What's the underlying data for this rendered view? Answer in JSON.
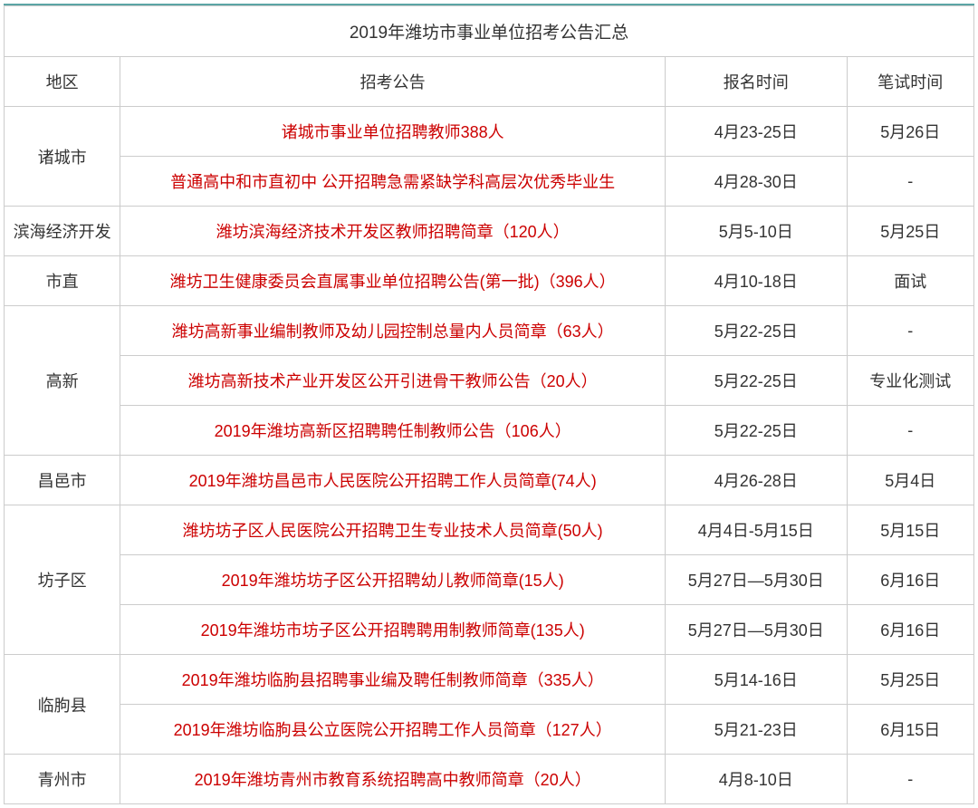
{
  "title": "2019年潍坊市事业单位招考公告汇总",
  "headers": {
    "region": "地区",
    "announcement": "招考公告",
    "signup_time": "报名时间",
    "exam_time": "笔试时间"
  },
  "colors": {
    "border_top": "#5ba5a5",
    "cell_border": "#cccccc",
    "text_normal": "#333333",
    "text_link": "#cc0000",
    "background": "#ffffff"
  },
  "font_sizes": {
    "title": 19,
    "cell": 18
  },
  "column_widths": {
    "region": 128,
    "announcement": 600,
    "signup": 200,
    "exam": 140
  },
  "groups": [
    {
      "region": "诸城市",
      "rows": [
        {
          "announcement": "诸城市事业单位招聘教师388人",
          "signup": "4月23-25日",
          "exam": "5月26日"
        },
        {
          "announcement": "普通高中和市直初中 公开招聘急需紧缺学科高层次优秀毕业生",
          "signup": "4月28-30日",
          "exam": "-"
        }
      ]
    },
    {
      "region": "滨海经济开发",
      "rows": [
        {
          "announcement": "潍坊滨海经济技术开发区教师招聘简章（120人）",
          "signup": "5月5-10日",
          "exam": "5月25日"
        }
      ]
    },
    {
      "region": "市直",
      "rows": [
        {
          "announcement": "潍坊卫生健康委员会直属事业单位招聘公告(第一批)（396人）",
          "signup": "4月10-18日",
          "exam": "面试"
        }
      ]
    },
    {
      "region": "高新",
      "rows": [
        {
          "announcement": "潍坊高新事业编制教师及幼儿园控制总量内人员简章（63人）",
          "signup": "5月22-25日",
          "exam": "-"
        },
        {
          "announcement": "潍坊高新技术产业开发区公开引进骨干教师公告（20人）",
          "signup": "5月22-25日",
          "exam": "专业化测试"
        },
        {
          "announcement": "2019年潍坊高新区招聘聘任制教师公告（106人）",
          "signup": "5月22-25日",
          "exam": "-"
        }
      ]
    },
    {
      "region": "昌邑市",
      "rows": [
        {
          "announcement": "2019年潍坊昌邑市人民医院公开招聘工作人员简章(74人)",
          "signup": "4月26-28日",
          "exam": "5月4日"
        }
      ]
    },
    {
      "region": "坊子区",
      "rows": [
        {
          "announcement": "潍坊坊子区人民医院公开招聘卫生专业技术人员简章(50人)",
          "signup": "4月4日-5月15日",
          "exam": "5月15日"
        },
        {
          "announcement": "2019年潍坊坊子区公开招聘幼儿教师简章(15人)",
          "signup": "5月27日—5月30日",
          "exam": "6月16日"
        },
        {
          "announcement": "2019年潍坊市坊子区公开招聘聘用制教师简章(135人)",
          "signup": "5月27日—5月30日",
          "exam": "6月16日"
        }
      ]
    },
    {
      "region": "临朐县",
      "rows": [
        {
          "announcement": "2019年潍坊临朐县招聘事业编及聘任制教师简章（335人）",
          "signup": "5月14-16日",
          "exam": "5月25日"
        },
        {
          "announcement": "2019年潍坊临朐县公立医院公开招聘工作人员简章（127人）",
          "signup": "5月21-23日",
          "exam": "6月15日"
        }
      ]
    },
    {
      "region": "青州市",
      "rows": [
        {
          "announcement": "2019年潍坊青州市教育系统招聘高中教师简章（20人）",
          "signup": "4月8-10日",
          "exam": "-"
        }
      ]
    }
  ]
}
